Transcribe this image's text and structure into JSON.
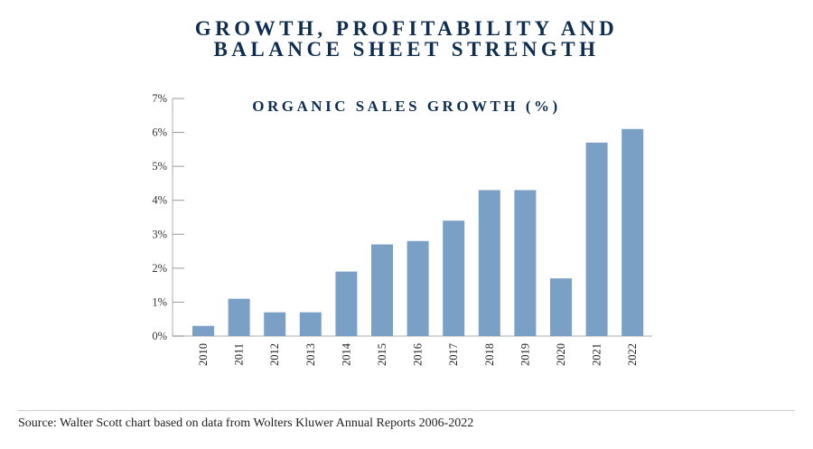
{
  "header": {
    "line1": "GROWTH, PROFITABILITY AND",
    "line2": "BALANCE SHEET STRENGTH"
  },
  "footer": {
    "source": "Source: Walter Scott chart based on data from Wolters Kluwer Annual Reports 2006-2022"
  },
  "colors": {
    "bar": "#7ba0c6",
    "title": "#0f2d4e",
    "axis": "#c8c8c8"
  },
  "chart_data": {
    "type": "bar",
    "title": "ORGANIC SALES GROWTH (%)",
    "xlabel": "",
    "ylabel": "",
    "categories": [
      "2010",
      "2011",
      "2012",
      "2013",
      "2014",
      "2015",
      "2016",
      "2017",
      "2018",
      "2019",
      "2020",
      "2021",
      "2022"
    ],
    "values": [
      0.3,
      1.1,
      0.7,
      0.7,
      1.9,
      2.7,
      2.8,
      3.4,
      4.3,
      4.3,
      1.7,
      5.7,
      6.1
    ],
    "ylim": [
      0,
      7
    ],
    "yticks": [
      "0%",
      "1%",
      "2%",
      "3%",
      "4%",
      "5%",
      "6%",
      "7%"
    ],
    "grid": false,
    "legend": "none"
  }
}
